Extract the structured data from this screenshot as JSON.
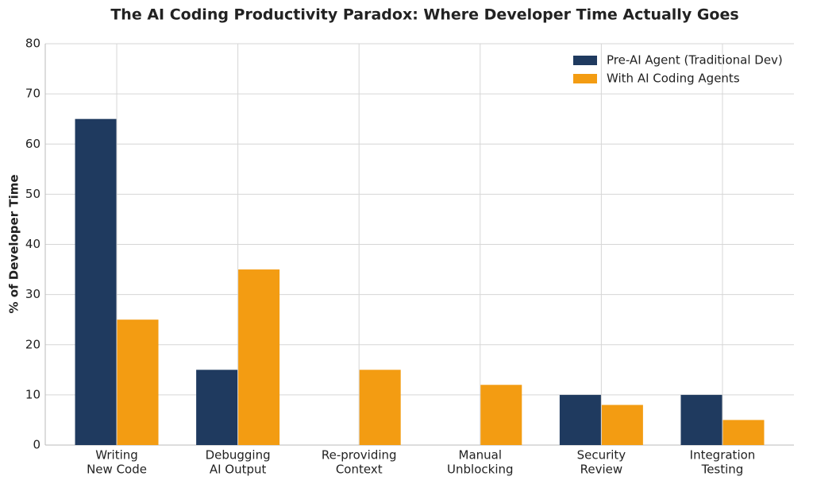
{
  "chart_data": {
    "type": "bar",
    "title": "The AI Coding Productivity Paradox: Where Developer Time Actually Goes",
    "y_label": "% of Developer Time",
    "categories": [
      [
        "Writing",
        "New Code"
      ],
      [
        "Debugging",
        "AI Output"
      ],
      [
        "Re-providing",
        "Context"
      ],
      [
        "Manual",
        "Unblocking"
      ],
      [
        "Security",
        "Review"
      ],
      [
        "Integration",
        "Testing"
      ]
    ],
    "series": [
      {
        "name": "Pre-AI Agent (Traditional Dev)",
        "color": "#1f3a5f",
        "values": [
          65,
          15,
          0,
          0,
          10,
          10
        ]
      },
      {
        "name": "With AI Coding Agents",
        "color": "#f39c12",
        "values": [
          25,
          35,
          15,
          12,
          8,
          5
        ]
      }
    ],
    "ylim": [
      0,
      80
    ],
    "yticks": [
      0,
      10,
      20,
      30,
      40,
      50,
      60,
      70,
      80
    ],
    "grid": true,
    "legend": "upper right"
  }
}
